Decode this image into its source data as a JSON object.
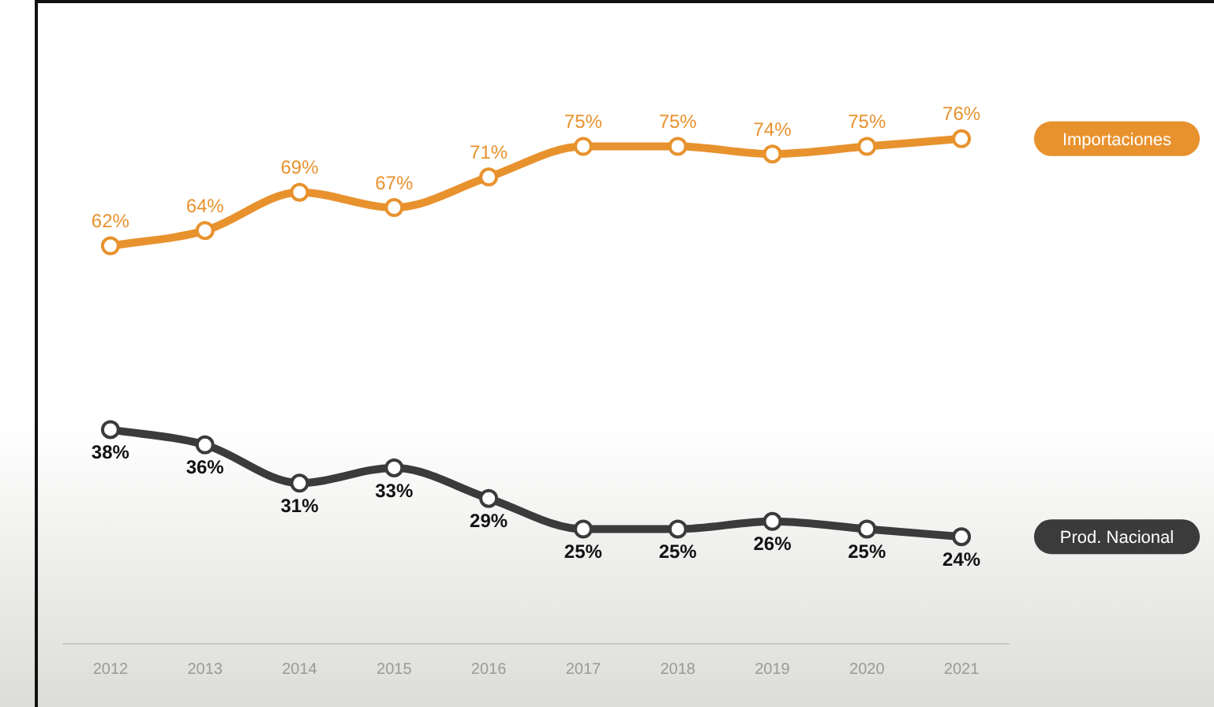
{
  "chart_data": {
    "type": "line",
    "categories": [
      "2012",
      "2013",
      "2014",
      "2015",
      "2016",
      "2017",
      "2018",
      "2019",
      "2020",
      "2021"
    ],
    "series": [
      {
        "name": "Importaciones",
        "color": "#e8922e",
        "values": [
          62,
          64,
          69,
          67,
          71,
          75,
          75,
          74,
          75,
          76
        ],
        "value_labels": [
          "62%",
          "64%",
          "69%",
          "67%",
          "71%",
          "75%",
          "75%",
          "74%",
          "75%",
          "76%"
        ]
      },
      {
        "name": "Prod. Nacional",
        "color": "#3b3b3b",
        "values": [
          38,
          36,
          31,
          33,
          29,
          25,
          25,
          26,
          25,
          24
        ],
        "value_labels": [
          "38%",
          "36%",
          "31%",
          "33%",
          "29%",
          "25%",
          "25%",
          "26%",
          "25%",
          "24%"
        ]
      }
    ],
    "tick_labels": "x",
    "grid": false,
    "legend": false,
    "marker": "circle",
    "line_style": "solid"
  }
}
